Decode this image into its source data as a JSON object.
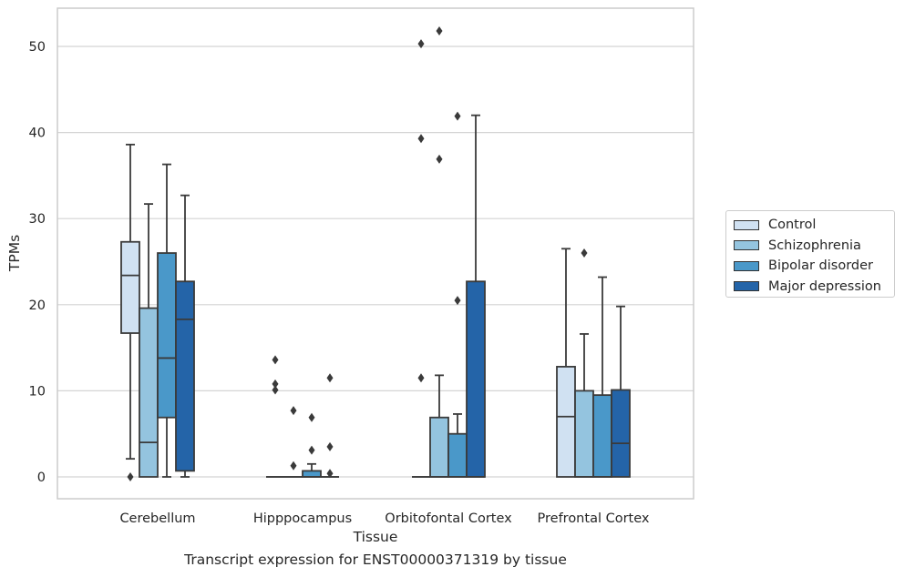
{
  "chart_data": {
    "type": "boxplot",
    "title": "Transcript expression for ENST00000371319 by tissue",
    "xlabel": "Tissue",
    "ylabel": "TPMs",
    "ylim": [
      -2.5,
      54.5
    ],
    "yticks": [
      0,
      10,
      20,
      30,
      40,
      50
    ],
    "grid": true,
    "legend_position": "right",
    "categories": [
      "Cerebellum",
      "Hipppocampus",
      "Orbitofontal Cortex",
      "Prefrontal Cortex"
    ],
    "series": [
      {
        "name": "Control",
        "color": "#d0e1f2",
        "boxes": [
          {
            "whislo": 2.1,
            "q1": 16.7,
            "med": 23.4,
            "q3": 27.3,
            "whishi": 38.6,
            "fliers": [
              0
            ]
          },
          {
            "whislo": 0,
            "q1": 0,
            "med": 0,
            "q3": 0,
            "whishi": 0,
            "fliers": [
              13.6,
              10.8,
              10.1
            ]
          },
          {
            "whislo": 0,
            "q1": 0,
            "med": 0,
            "q3": 0,
            "whishi": 0,
            "fliers": [
              50.3,
              39.3,
              11.5
            ]
          },
          {
            "whislo": 0,
            "q1": 0,
            "med": 7.0,
            "q3": 12.8,
            "whishi": 26.5,
            "fliers": []
          }
        ]
      },
      {
        "name": "Schizophrenia",
        "color": "#94c4df",
        "boxes": [
          {
            "whislo": 0,
            "q1": 0,
            "med": 4.0,
            "q3": 19.6,
            "whishi": 31.7,
            "fliers": []
          },
          {
            "whislo": 0,
            "q1": 0,
            "med": 0,
            "q3": 0,
            "whishi": 0,
            "fliers": [
              7.7,
              1.3
            ]
          },
          {
            "whislo": 0,
            "q1": 0,
            "med": 0,
            "q3": 6.9,
            "whishi": 11.8,
            "fliers": [
              51.8,
              36.9
            ]
          },
          {
            "whislo": 0,
            "q1": 0,
            "med": 0,
            "q3": 10.0,
            "whishi": 16.6,
            "fliers": [
              26.0
            ]
          }
        ]
      },
      {
        "name": "Bipolar disorder",
        "color": "#4a98c9",
        "boxes": [
          {
            "whislo": 0,
            "q1": 6.9,
            "med": 13.8,
            "q3": 26.0,
            "whishi": 36.3,
            "fliers": []
          },
          {
            "whislo": 0,
            "q1": 0,
            "med": 0,
            "q3": 0.7,
            "whishi": 1.5,
            "fliers": [
              6.9,
              3.1
            ]
          },
          {
            "whislo": 0,
            "q1": 0,
            "med": 0,
            "q3": 5.0,
            "whishi": 7.3,
            "fliers": [
              41.9,
              20.5
            ]
          },
          {
            "whislo": 0,
            "q1": 0,
            "med": 0,
            "q3": 9.5,
            "whishi": 23.2,
            "fliers": []
          }
        ]
      },
      {
        "name": "Major depression",
        "color": "#2464a8",
        "boxes": [
          {
            "whislo": 0,
            "q1": 0.7,
            "med": 18.3,
            "q3": 22.7,
            "whishi": 32.7,
            "fliers": []
          },
          {
            "whislo": 0,
            "q1": 0,
            "med": 0,
            "q3": 0,
            "whishi": 0,
            "fliers": [
              11.5,
              3.5,
              0.4
            ]
          },
          {
            "whislo": 0,
            "q1": 0,
            "med": 0,
            "q3": 22.7,
            "whishi": 42.0,
            "fliers": []
          },
          {
            "whislo": 0,
            "q1": 0,
            "med": 3.9,
            "q3": 10.1,
            "whishi": 19.8,
            "fliers": []
          }
        ]
      }
    ]
  }
}
